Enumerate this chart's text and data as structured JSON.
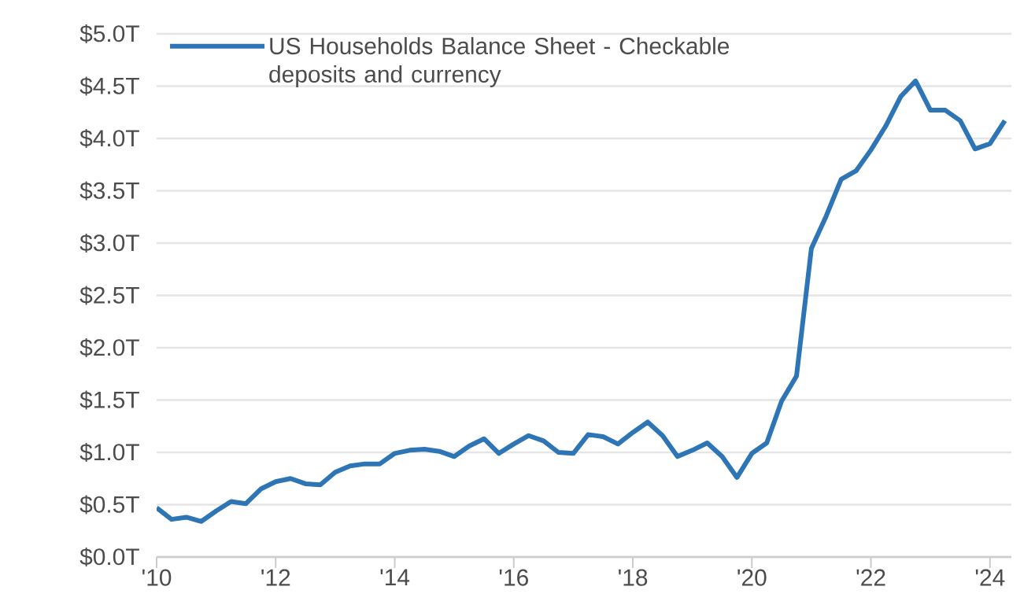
{
  "chart_data": {
    "type": "line",
    "x": [
      2010.0,
      2010.25,
      2010.5,
      2010.75,
      2011.0,
      2011.25,
      2011.5,
      2011.75,
      2012.0,
      2012.25,
      2012.5,
      2012.75,
      2013.0,
      2013.25,
      2013.5,
      2013.75,
      2014.0,
      2014.25,
      2014.5,
      2014.75,
      2015.0,
      2015.25,
      2015.5,
      2015.75,
      2016.0,
      2016.25,
      2016.5,
      2016.75,
      2017.0,
      2017.25,
      2017.5,
      2017.75,
      2018.0,
      2018.25,
      2018.5,
      2018.75,
      2019.0,
      2019.25,
      2019.5,
      2019.75,
      2020.0,
      2020.25,
      2020.5,
      2020.75,
      2021.0,
      2021.25,
      2021.5,
      2021.75,
      2022.0,
      2022.25,
      2022.5,
      2022.75,
      2023.0,
      2023.25,
      2023.5,
      2023.75,
      2024.0,
      2024.25
    ],
    "series": [
      {
        "name": "US Households Balance Sheet - Checkable deposits and currency",
        "color": "#2e75b6",
        "values": [
          0.47,
          0.36,
          0.38,
          0.34,
          0.44,
          0.53,
          0.51,
          0.65,
          0.72,
          0.75,
          0.7,
          0.69,
          0.81,
          0.87,
          0.89,
          0.89,
          0.99,
          1.02,
          1.03,
          1.01,
          0.96,
          1.06,
          1.13,
          0.99,
          1.08,
          1.16,
          1.11,
          1.0,
          0.99,
          1.17,
          1.15,
          1.08,
          1.19,
          1.29,
          1.16,
          0.96,
          1.02,
          1.09,
          0.96,
          0.76,
          0.99,
          1.09,
          1.49,
          1.73,
          2.95,
          3.26,
          3.61,
          3.69,
          3.89,
          4.12,
          4.4,
          4.55,
          4.27,
          4.27,
          4.17,
          3.9,
          3.95,
          4.17
        ]
      }
    ],
    "xlim": [
      2010,
      2024.36
    ],
    "xticks": [
      {
        "value": 2010,
        "label": "'10"
      },
      {
        "value": 2012,
        "label": "'12"
      },
      {
        "value": 2014,
        "label": "'14"
      },
      {
        "value": 2016,
        "label": "'16"
      },
      {
        "value": 2018,
        "label": "'18"
      },
      {
        "value": 2020,
        "label": "'20"
      },
      {
        "value": 2022,
        "label": "'22"
      },
      {
        "value": 2024,
        "label": "'24"
      }
    ],
    "ylim": [
      0,
      5
    ],
    "yticks": [
      {
        "value": 0,
        "label": "$0.0T"
      },
      {
        "value": 0.5,
        "label": "$0.5T"
      },
      {
        "value": 1,
        "label": "$1.0T"
      },
      {
        "value": 1.5,
        "label": "$1.5T"
      },
      {
        "value": 2,
        "label": "$2.0T"
      },
      {
        "value": 2.5,
        "label": "$2.5T"
      },
      {
        "value": 3,
        "label": "$3.0T"
      },
      {
        "value": 3.5,
        "label": "$3.5T"
      },
      {
        "value": 4,
        "label": "$4.0T"
      },
      {
        "value": 4.5,
        "label": "$4.5T"
      },
      {
        "value": 5,
        "label": "$5.0T"
      }
    ],
    "grid": "y",
    "legend": "top left",
    "marker": "none",
    "line_style": "solid"
  }
}
